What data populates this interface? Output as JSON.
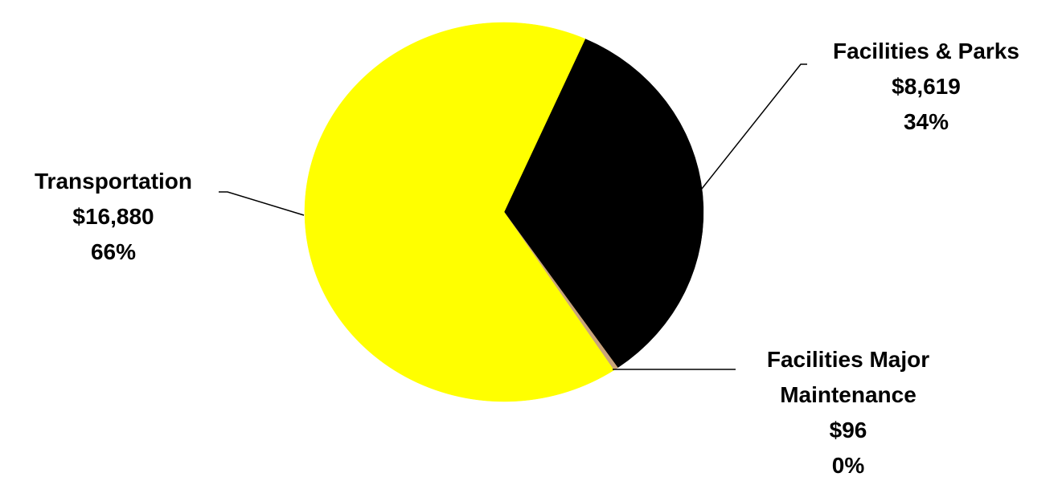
{
  "chart_data": {
    "type": "pie",
    "categories": [
      "Facilities & Parks",
      "Facilities Major Maintenance",
      "Transportation"
    ],
    "values": [
      8619,
      96,
      16880
    ],
    "value_labels": [
      "$8,619",
      "$96",
      "$16,880"
    ],
    "percents": [
      34,
      0,
      66
    ],
    "percent_labels": [
      "34%",
      "0%",
      "66%"
    ],
    "colors": [
      "#000000",
      "#c9a47a",
      "#ffff00"
    ]
  }
}
